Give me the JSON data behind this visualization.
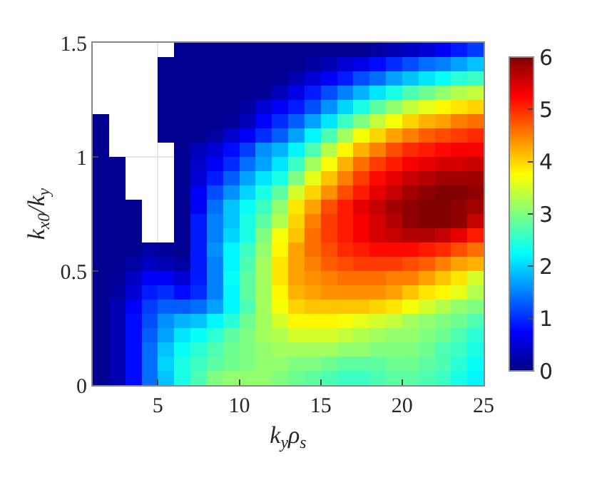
{
  "chart_data": {
    "type": "heatmap",
    "xlabel": "k$_{y}$ρ$_{s}$",
    "ylabel": "k$_{x0}$/k$_{y}$",
    "x": [
      1.5,
      2.5,
      3.5,
      4.5,
      5.5,
      6.5,
      7.5,
      8.5,
      9.5,
      10.5,
      11.5,
      12.5,
      13.5,
      14.5,
      15.5,
      16.5,
      17.5,
      18.5,
      19.5,
      20.5,
      21.5,
      22.5,
      23.5,
      24.5
    ],
    "y": [
      1.46875,
      1.40625,
      1.34375,
      1.28125,
      1.21875,
      1.15625,
      1.09375,
      1.03125,
      0.96875,
      0.90625,
      0.84375,
      0.78125,
      0.71875,
      0.65625,
      0.59375,
      0.53125,
      0.46875,
      0.40625,
      0.34375,
      0.28125,
      0.21875,
      0.15625,
      0.09375,
      0.03125
    ],
    "cells": [
      [
        null,
        null,
        null,
        null,
        null,
        0.1,
        0.1,
        0.1,
        0.1,
        0.1,
        0.1,
        0.1,
        0.1,
        0.1,
        0.1,
        0.1,
        0.1,
        0.2,
        0.3,
        0.4,
        0.5,
        0.7,
        0.9,
        1.1
      ],
      [
        null,
        null,
        null,
        null,
        0.1,
        0.1,
        0.1,
        0.1,
        0.1,
        0.1,
        0.1,
        0.1,
        0.1,
        0.2,
        0.3,
        0.5,
        0.6,
        0.8,
        1,
        1.2,
        1.4,
        1.5,
        1.7,
        1.9
      ],
      [
        null,
        null,
        null,
        null,
        0.1,
        0.1,
        0.1,
        0.1,
        0.1,
        0.1,
        0.1,
        0.15,
        0.3,
        0.5,
        0.7,
        0.9,
        1.2,
        1.4,
        1.7,
        1.9,
        2.1,
        2.3,
        2.5,
        2.6
      ],
      [
        null,
        null,
        null,
        null,
        0.1,
        0.1,
        0.1,
        0.1,
        0.1,
        0.1,
        0.15,
        0.35,
        0.6,
        0.9,
        1.2,
        1.5,
        1.8,
        2.1,
        2.4,
        2.7,
        2.9,
        3.1,
        3.3,
        3.4
      ],
      [
        null,
        null,
        null,
        null,
        0.1,
        0.1,
        0.1,
        0.1,
        0.1,
        0.2,
        0.5,
        0.7,
        0.9,
        1.2,
        1.6,
        2,
        2.4,
        2.8,
        3.1,
        3.4,
        3.6,
        3.8,
        3.9,
        4
      ],
      [
        0.1,
        null,
        null,
        null,
        0.1,
        0.1,
        0.1,
        0.1,
        0.15,
        0.35,
        0.75,
        1,
        1.3,
        1.7,
        2.1,
        2.6,
        3,
        3.4,
        3.7,
        4,
        4.2,
        4.3,
        4.5,
        4.6
      ],
      [
        0.1,
        null,
        null,
        null,
        0.1,
        0.1,
        0.1,
        0.2,
        0.45,
        0.7,
        1,
        1.3,
        1.7,
        2.2,
        2.7,
        3.2,
        3.7,
        4,
        4.3,
        4.5,
        4.7,
        4.8,
        4.9,
        5
      ],
      [
        0.1,
        null,
        null,
        null,
        null,
        0.1,
        0.35,
        0.5,
        0.8,
        1.1,
        1.6,
        1.8,
        2.2,
        2.7,
        3.3,
        3.8,
        4.2,
        4.5,
        4.8,
        5,
        5.1,
        5.2,
        5.3,
        5.3
      ],
      [
        0.1,
        0.1,
        null,
        null,
        null,
        0.1,
        0.45,
        0.7,
        1,
        1.4,
        1.7,
        2.1,
        2.6,
        3.2,
        3.7,
        4.2,
        4.6,
        4.9,
        5.1,
        5.3,
        5.4,
        5.5,
        5.5,
        5.6
      ],
      [
        0.1,
        0.1,
        null,
        null,
        null,
        0.1,
        0.5,
        0.9,
        1.3,
        1.7,
        2.1,
        2.4,
        3,
        3.6,
        4.1,
        4.5,
        4.9,
        5.2,
        5.4,
        5.6,
        5.7,
        5.8,
        5.8,
        5.8
      ],
      [
        0.1,
        0.1,
        null,
        null,
        null,
        0.1,
        0.7,
        1.2,
        1.6,
        2,
        2.4,
        2.8,
        3.5,
        4,
        4.4,
        4.8,
        5.1,
        5.4,
        5.6,
        5.8,
        5.9,
        6,
        6,
        5.9
      ],
      [
        0.1,
        0.1,
        0.1,
        null,
        null,
        0.1,
        0.7,
        1.4,
        1.9,
        2.3,
        2.6,
        3.1,
        3.9,
        4.3,
        4.8,
        5.1,
        5.4,
        5.6,
        5.8,
        5.9,
        6,
        6,
        5.9,
        5.8
      ],
      [
        0.1,
        0.1,
        0.1,
        null,
        null,
        0.1,
        0.9,
        1.5,
        1.9,
        2.4,
        2.8,
        3.3,
        4,
        4.5,
        4.9,
        5.1,
        5.3,
        5.5,
        5.7,
        5.9,
        6,
        6,
        5.9,
        5.6
      ],
      [
        0.1,
        0.1,
        0.1,
        null,
        null,
        0.1,
        0.9,
        1.5,
        2,
        2.4,
        3,
        3.7,
        4.1,
        4.6,
        4.9,
        5.1,
        5.3,
        5.5,
        5.6,
        5.7,
        5.7,
        5.6,
        5.4,
        5.1
      ],
      [
        0.1,
        0.1,
        0.1,
        0.2,
        0.15,
        0.1,
        0.9,
        1.6,
        2.2,
        2.6,
        3.1,
        3.8,
        4.3,
        4.6,
        4.8,
        5,
        5.1,
        5.2,
        5.2,
        5.2,
        5.1,
        5,
        4.8,
        4.6
      ],
      [
        0.1,
        0.1,
        0.2,
        0.4,
        0.3,
        0.2,
        0.9,
        1.5,
        2.2,
        2.7,
        3.2,
        3.9,
        4.3,
        4.5,
        4.7,
        4.8,
        4.9,
        4.9,
        4.9,
        4.8,
        4.7,
        4.5,
        4.3,
        4.2
      ],
      [
        0.1,
        0.15,
        0.4,
        0.7,
        0.7,
        0.5,
        0.9,
        1.5,
        2.3,
        2.8,
        3.2,
        3.9,
        4.3,
        4.4,
        4.5,
        4.6,
        4.6,
        4.6,
        4.5,
        4.5,
        4.3,
        4.1,
        3.9,
        3.5
      ],
      [
        0.1,
        0.2,
        0.5,
        0.9,
        1,
        0.8,
        1,
        1.5,
        2.2,
        2.8,
        3.2,
        3.8,
        4.2,
        4.3,
        4.4,
        4.4,
        4.4,
        4.4,
        4.3,
        4.1,
        3.9,
        3.8,
        3.6,
        3.3
      ],
      [
        0.1,
        0.3,
        0.7,
        1.1,
        1.3,
        1.3,
        1.4,
        1.7,
        2.2,
        2.7,
        3.2,
        3.7,
        4,
        4.1,
        4.1,
        4.1,
        4.1,
        4,
        3.9,
        3.7,
        3.5,
        3.3,
        3.1,
        3
      ],
      [
        0.1,
        0.3,
        0.8,
        1.2,
        1.6,
        1.8,
        1.9,
        2.2,
        2.5,
        2.9,
        3.2,
        3.5,
        3.8,
        3.8,
        3.8,
        3.7,
        3.6,
        3.5,
        3.4,
        3.2,
        3.1,
        3,
        2.9,
        2.7
      ],
      [
        0.1,
        0.3,
        0.8,
        1.3,
        1.7,
        2.1,
        2.3,
        2.5,
        2.8,
        3,
        3.2,
        3.3,
        3.5,
        3.5,
        3.5,
        3.4,
        3.3,
        3.2,
        3.1,
        3.1,
        3,
        2.9,
        2.7,
        2.5
      ],
      [
        0.1,
        0.3,
        0.8,
        1.4,
        1.9,
        2.3,
        2.5,
        2.7,
        2.9,
        3,
        3.1,
        3.2,
        3.2,
        3.2,
        3.2,
        3.1,
        3.1,
        3,
        3,
        3,
        2.9,
        2.7,
        2.6,
        2.4
      ],
      [
        0.1,
        0.3,
        0.8,
        1.4,
        2,
        2.4,
        2.6,
        2.8,
        2.9,
        3,
        3.1,
        3.1,
        3,
        3,
        2.9,
        2.8,
        2.8,
        2.8,
        2.9,
        2.9,
        2.8,
        2.7,
        2.5,
        2.3
      ],
      [
        0.1,
        0.3,
        0.8,
        1.4,
        1.9,
        2.4,
        2.7,
        3,
        3.1,
        3.1,
        3.1,
        3,
        2.9,
        2.8,
        2.7,
        2.6,
        2.6,
        2.7,
        2.8,
        2.8,
        2.7,
        2.6,
        2.4,
        2.2
      ]
    ],
    "xlim": [
      1,
      25
    ],
    "xticks": [
      5,
      10,
      15,
      20,
      25
    ],
    "ylim": [
      0,
      1.5
    ],
    "yticks": [
      0,
      0.5,
      1,
      1.5
    ],
    "clim": [
      0,
      6
    ],
    "cticks": [
      0,
      1,
      2,
      3,
      4,
      5,
      6
    ],
    "grid": true
  }
}
